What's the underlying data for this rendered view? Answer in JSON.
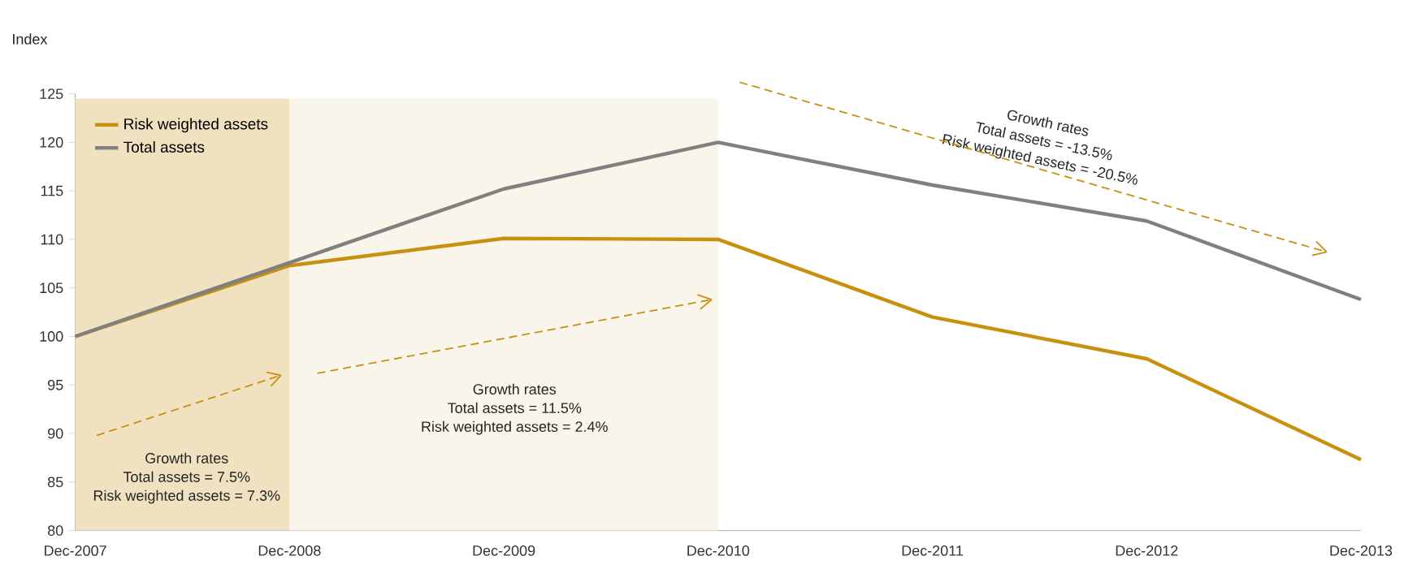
{
  "chart_data": {
    "type": "line",
    "ylabel": "Index",
    "categories": [
      "Dec-2007",
      "Dec-2008",
      "Dec-2009",
      "Dec-2010",
      "Dec-2011",
      "Dec-2012",
      "Dec-2013"
    ],
    "series": [
      {
        "name": "Risk weighted assets",
        "color": "#c8900f",
        "values": [
          100,
          107.3,
          110.1,
          110.0,
          102.0,
          97.7,
          87.3
        ]
      },
      {
        "name": "Total assets",
        "color": "#808080",
        "values": [
          100,
          107.6,
          115.2,
          120.0,
          115.6,
          111.9,
          103.8
        ]
      }
    ],
    "ylim": [
      80,
      125
    ],
    "yticks": [
      80,
      85,
      90,
      95,
      100,
      105,
      110,
      115,
      120,
      125
    ],
    "bands": [
      {
        "axis": "x",
        "from": "Dec-2007",
        "to": "Dec-2008",
        "color": "#f0e2c0"
      },
      {
        "axis": "x",
        "from": "Dec-2008",
        "to": "Dec-2010",
        "color": "#faf5ea"
      }
    ],
    "annotations": [
      "Growth rates",
      "Total assets = 7.5%",
      "Risk weighted assets = 7.3%",
      "Growth rates",
      "Total assets = 11.5%",
      "Risk weighted assets = 2.4%",
      "Growth rates",
      "Total assets = -13.5%",
      "Risk weighted assets = -20.5%"
    ],
    "legend": "top left",
    "line_style": "solid",
    "marker": "none",
    "grid": false
  }
}
